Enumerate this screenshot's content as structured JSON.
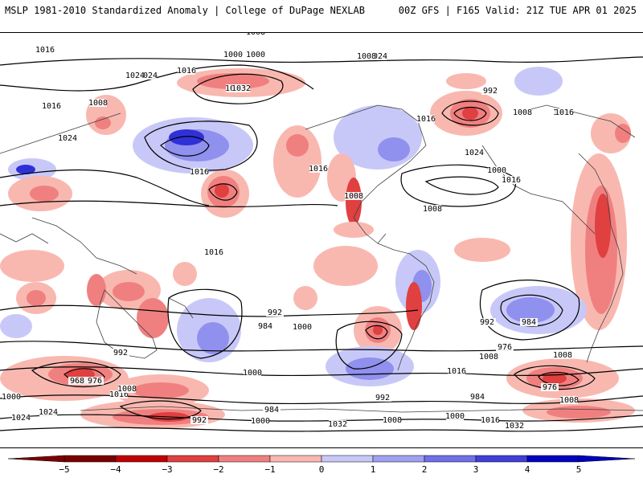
{
  "header": {
    "title": "MSLP 1981-2010 Standardized Anomaly | College of DuPage NEXLAB",
    "run_info": "00Z GFS | F165 Valid: 21Z TUE APR 01 2025"
  },
  "colors": {
    "strong_neg": "#c00000",
    "neg": "#e04040",
    "mid_neg": "#f08080",
    "weak_neg": "#f8b8b0",
    "neutral": "#ffffff",
    "weak_pos": "#c8c8f8",
    "mid_pos": "#9090ee",
    "strong_pos": "#3030d8",
    "contour": "#000000",
    "coastline": "#404040"
  },
  "isobar_labels": [
    "1016",
    "1024",
    "1008",
    "1000",
    "1016",
    "1024",
    "1032",
    "1016",
    "1024",
    "1008",
    "1032",
    "1000",
    "992",
    "1016",
    "1024",
    "1016",
    "1008",
    "1016",
    "1016",
    "1024",
    "1008",
    "1016",
    "1008",
    "1008",
    "1016",
    "1016",
    "1000",
    "1016",
    "1024",
    "992",
    "1000",
    "984",
    "1008",
    "976",
    "992",
    "984",
    "968",
    "976",
    "1016",
    "1000",
    "992",
    "1024",
    "1008",
    "1000",
    "1016",
    "1032",
    "984",
    "1008",
    "1024",
    "1000",
    "1016",
    "1032",
    "992",
    "1008",
    "1000",
    "984",
    "992",
    "976",
    "1008"
  ],
  "colorbar": {
    "ticks": [
      "−5",
      "−4",
      "−3",
      "−2",
      "−1",
      "0",
      "1",
      "2",
      "3",
      "4",
      "5"
    ]
  }
}
